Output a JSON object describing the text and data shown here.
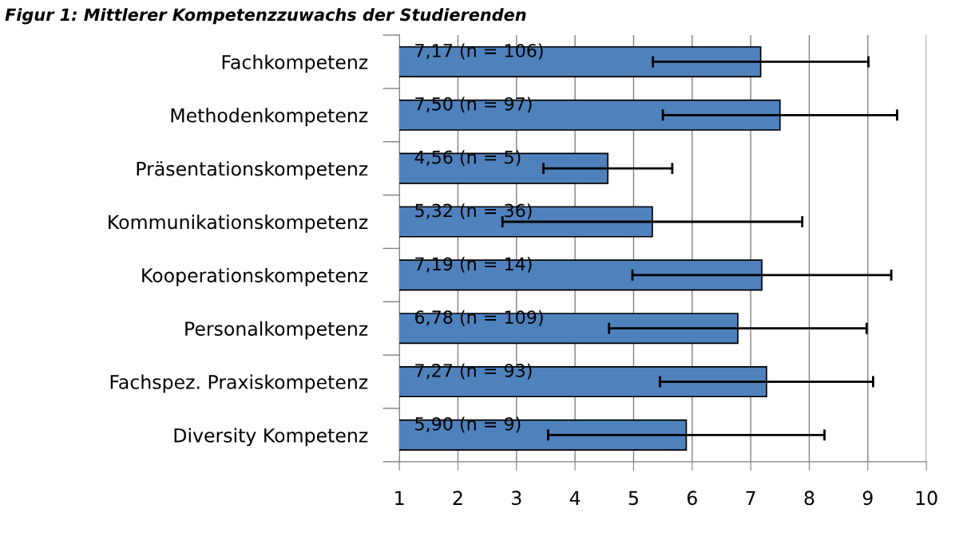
{
  "chart_data": {
    "type": "bar",
    "orientation": "horizontal",
    "title": "Figur 1: Mittlerer Kompetenzzuwachs der Studierenden",
    "categories": [
      "Fachkompetenz",
      "Methodenkompetenz",
      "Präsentationskompetenz",
      "Kommunikationskompetenz",
      "Kooperationskompetenz",
      "Personalkompetenz",
      "Fachspez. Praxiskompetenz",
      "Diversity Kompetenz"
    ],
    "values": [
      7.17,
      7.5,
      4.56,
      5.32,
      7.19,
      6.78,
      7.27,
      5.9
    ],
    "errors": [
      1.84,
      2.0,
      1.1,
      2.56,
      2.21,
      2.2,
      1.82,
      2.36
    ],
    "value_labels": [
      "7,17 (n = 106)",
      "7,50 (n = 97)",
      "4,56 (n = 5)",
      "5,32 (n = 36)",
      "7,19 (n = 14)",
      "6,78 (n = 109)",
      "7,27 (n = 93)",
      "5,90 (n = 9)"
    ],
    "color": "#4f81bd",
    "xlim": [
      1,
      10
    ],
    "xticks": [
      1,
      2,
      3,
      4,
      5,
      6,
      7,
      8,
      9,
      10
    ],
    "grid": "x",
    "legend": false
  }
}
